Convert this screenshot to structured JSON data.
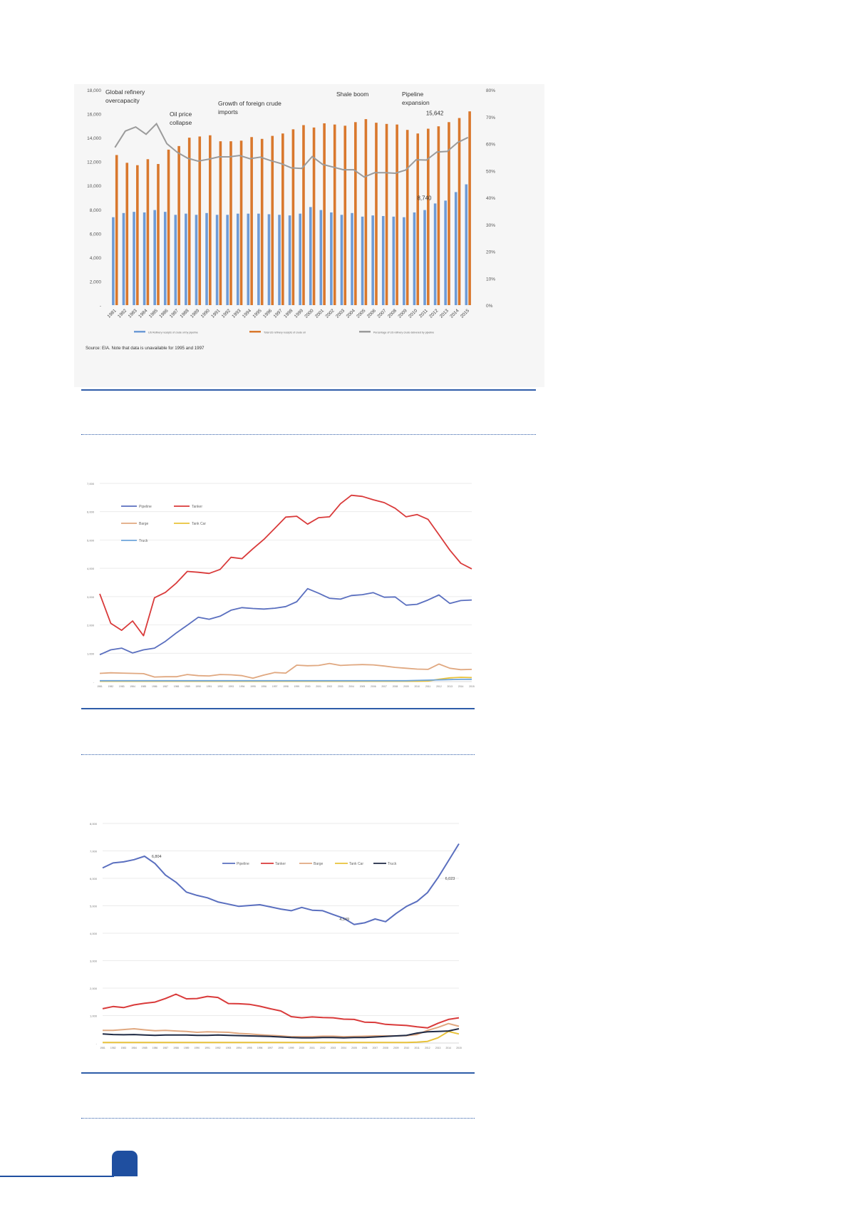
{
  "colors": {
    "accent": "#2e5ca8",
    "bar_blue": "#6e9bd6",
    "bar_orange": "#d9782d",
    "pct_line": "#9b9b9b",
    "pipeline": "#5a6fbf",
    "tanker": "#d93a3a",
    "barge": "#e0a880",
    "tankcar": "#e8c23a",
    "truck": "#6fa6dc",
    "truck_dark": "#1f2a44"
  },
  "chart_data": [
    {
      "type": "bar",
      "categories": [
        "1981",
        "1982",
        "1983",
        "1984",
        "1985",
        "1986",
        "1987",
        "1988",
        "1989",
        "1990",
        "1991",
        "1992",
        "1993",
        "1994",
        "1995",
        "1996",
        "1997",
        "1998",
        "1999",
        "2000",
        "2001",
        "2002",
        "2003",
        "2004",
        "2005",
        "2006",
        "2007",
        "2008",
        "2009",
        "2010",
        "2011",
        "2012",
        "2013",
        "2014",
        "2015"
      ],
      "series": [
        {
          "name": "US Refinery receipts of crude oil by pipeline",
          "axis": "left",
          "values": [
            7350,
            7700,
            7800,
            7750,
            7950,
            7800,
            7550,
            7650,
            7550,
            7700,
            7550,
            7550,
            7650,
            7650,
            7650,
            7600,
            7550,
            7500,
            7650,
            8200,
            7950,
            7750,
            7550,
            7700,
            7400,
            7500,
            7450,
            7400,
            7350,
            7750,
            7950,
            8500,
            8740,
            9450,
            10100
          ]
        },
        {
          "name": "Total US refinery receipts of crude oil",
          "axis": "left",
          "values": [
            12550,
            11900,
            11700,
            12200,
            11800,
            13000,
            13300,
            14000,
            14100,
            14200,
            13700,
            13700,
            13750,
            14050,
            13900,
            14150,
            14350,
            14700,
            15050,
            14850,
            15200,
            15100,
            15000,
            15300,
            15550,
            15250,
            15150,
            15100,
            14650,
            14350,
            14750,
            14950,
            15300,
            15642,
            16200
          ]
        },
        {
          "name": "Percentage of US refinery crude delivered by pipeline",
          "axis": "right",
          "values": [
            58.6,
            64.7,
            66.2,
            63.5,
            67.4,
            60.0,
            56.8,
            54.6,
            53.5,
            54.2,
            55.1,
            55.1,
            55.6,
            54.4,
            55.0,
            53.7,
            52.6,
            51.0,
            50.8,
            55.2,
            52.3,
            51.3,
            50.3,
            50.3,
            47.6,
            49.2,
            49.2,
            49.0,
            50.2,
            54.0,
            53.9,
            56.9,
            57.1,
            60.4,
            62.3
          ]
        }
      ],
      "ylim_left": [
        0,
        18000
      ],
      "yticks_left": [
        "-",
        "2,000",
        "4,000",
        "6,000",
        "8,000",
        "10,000",
        "12,000",
        "14,000",
        "16,000",
        "18,000"
      ],
      "ylim_right": [
        0,
        80
      ],
      "yticks_right": [
        "0%",
        "10%",
        "20%",
        "30%",
        "40%",
        "50%",
        "60%",
        "70%",
        "80%"
      ],
      "annotations": [
        "Global refinery overcapacity",
        "Oil price collapse",
        "Growth of foreign crude imports",
        "Shale boom",
        "Pipeline expansion"
      ],
      "value_labels": [
        "15,642",
        "8,740"
      ],
      "legend": [
        "US Refinery receipts of crude oil by pipeline",
        "Total US refinery receipts of crude oil",
        "Percentage of US refinery crude delivered by pipeline"
      ],
      "note": "Source: EIA. Note that data is unavailable for 1995 and 1997"
    },
    {
      "type": "line",
      "x": [
        "1981",
        "1982",
        "1983",
        "1984",
        "1985",
        "1986",
        "1987",
        "1988",
        "1989",
        "1990",
        "1991",
        "1992",
        "1993",
        "1994",
        "1995",
        "1996",
        "1997",
        "1998",
        "1999",
        "2000",
        "2001",
        "2002",
        "2003",
        "2004",
        "2005",
        "2006",
        "2007",
        "2008",
        "2009",
        "2010",
        "2011",
        "2012",
        "2013",
        "2014",
        "2015"
      ],
      "yticks": [
        "-",
        "1,000",
        "2,000",
        "3,000",
        "4,000",
        "5,000",
        "6,000",
        "7,000"
      ],
      "ylim": [
        0,
        7000
      ],
      "series": [
        {
          "name": "Pipeline",
          "values": [
            950,
            1120,
            1180,
            1010,
            1120,
            1180,
            1420,
            1720,
            1990,
            2270,
            2200,
            2310,
            2520,
            2610,
            2580,
            2560,
            2590,
            2650,
            2820,
            3280,
            3120,
            2940,
            2910,
            3040,
            3070,
            3140,
            2980,
            2990,
            2700,
            2730,
            2880,
            3060,
            2760,
            2860,
            2880
          ]
        },
        {
          "name": "Tanker",
          "values": [
            3100,
            2060,
            1810,
            2140,
            1620,
            2960,
            3150,
            3480,
            3890,
            3860,
            3820,
            3960,
            4390,
            4340,
            4690,
            5020,
            5410,
            5810,
            5840,
            5560,
            5790,
            5820,
            6280,
            6580,
            6540,
            6420,
            6320,
            6120,
            5820,
            5900,
            5730,
            5190,
            4640,
            4180,
            3980
          ]
        },
        {
          "name": "Barge",
          "values": [
            290,
            310,
            300,
            290,
            280,
            160,
            170,
            170,
            250,
            210,
            200,
            250,
            240,
            210,
            120,
            230,
            320,
            300,
            580,
            560,
            570,
            640,
            570,
            590,
            600,
            590,
            550,
            500,
            470,
            440,
            430,
            620,
            470,
            420,
            430
          ]
        },
        {
          "name": "Tank Car",
          "values": [
            10,
            10,
            10,
            10,
            10,
            10,
            10,
            10,
            10,
            10,
            10,
            10,
            10,
            10,
            10,
            10,
            10,
            10,
            10,
            10,
            10,
            10,
            10,
            10,
            10,
            10,
            10,
            10,
            10,
            10,
            20,
            80,
            130,
            150,
            140
          ]
        },
        {
          "name": "Truck",
          "values": [
            30,
            30,
            30,
            30,
            30,
            30,
            30,
            30,
            30,
            30,
            30,
            30,
            30,
            30,
            30,
            30,
            30,
            30,
            30,
            30,
            30,
            30,
            30,
            30,
            30,
            30,
            30,
            30,
            30,
            40,
            50,
            60,
            70,
            80,
            80
          ]
        }
      ],
      "legend": [
        "Pipeline",
        "Tanker",
        "Barge",
        "Tank Car",
        "Truck"
      ]
    },
    {
      "type": "line",
      "x": [
        "1981",
        "1982",
        "1983",
        "1984",
        "1985",
        "1986",
        "1987",
        "1988",
        "1989",
        "1990",
        "1991",
        "1992",
        "1993",
        "1994",
        "1995",
        "1996",
        "1997",
        "1998",
        "1999",
        "2000",
        "2001",
        "2002",
        "2003",
        "2004",
        "2005",
        "2006",
        "2007",
        "2008",
        "2009",
        "2010",
        "2011",
        "2012",
        "2013",
        "2014",
        "2015"
      ],
      "yticks": [
        "-",
        "1,000",
        "2,000",
        "3,000",
        "4,000",
        "5,000",
        "6,000",
        "7,000",
        "8,000"
      ],
      "ylim": [
        0,
        8000
      ],
      "series": [
        {
          "name": "Pipeline",
          "values": [
            6380,
            6560,
            6600,
            6680,
            6804,
            6540,
            6120,
            5860,
            5500,
            5380,
            5290,
            5140,
            5060,
            4980,
            5010,
            5040,
            4960,
            4880,
            4820,
            4940,
            4840,
            4820,
            4680,
            4549,
            4320,
            4380,
            4520,
            4420,
            4720,
            4980,
            5160,
            5480,
            6023,
            6640,
            7260
          ]
        },
        {
          "name": "Tanker",
          "values": [
            1250,
            1330,
            1290,
            1390,
            1450,
            1490,
            1620,
            1780,
            1610,
            1620,
            1700,
            1660,
            1440,
            1430,
            1410,
            1340,
            1250,
            1170,
            960,
            920,
            950,
            930,
            920,
            870,
            860,
            760,
            750,
            680,
            660,
            640,
            590,
            550,
            720,
            860,
            920
          ]
        },
        {
          "name": "Barge",
          "values": [
            460,
            460,
            490,
            520,
            480,
            450,
            460,
            440,
            420,
            390,
            410,
            400,
            390,
            350,
            330,
            300,
            280,
            260,
            230,
            230,
            230,
            250,
            250,
            230,
            240,
            250,
            260,
            260,
            260,
            270,
            310,
            460,
            570,
            710,
            610
          ]
        },
        {
          "name": "Tank Car",
          "values": [
            20,
            20,
            20,
            20,
            20,
            20,
            20,
            20,
            20,
            20,
            20,
            20,
            20,
            20,
            20,
            20,
            20,
            20,
            20,
            20,
            20,
            20,
            20,
            20,
            20,
            20,
            20,
            20,
            20,
            20,
            30,
            60,
            190,
            420,
            330
          ]
        },
        {
          "name": "Truck",
          "values": [
            330,
            310,
            300,
            310,
            290,
            280,
            290,
            290,
            290,
            280,
            280,
            290,
            280,
            270,
            260,
            250,
            240,
            220,
            200,
            190,
            190,
            200,
            200,
            190,
            200,
            200,
            220,
            240,
            260,
            280,
            360,
            410,
            420,
            440,
            520
          ]
        }
      ],
      "value_labels": [
        "6,804",
        "4,549",
        "6,023"
      ],
      "legend": [
        "Pipeline",
        "Tanker",
        "Barge",
        "Tank Car",
        "Truck"
      ]
    }
  ]
}
